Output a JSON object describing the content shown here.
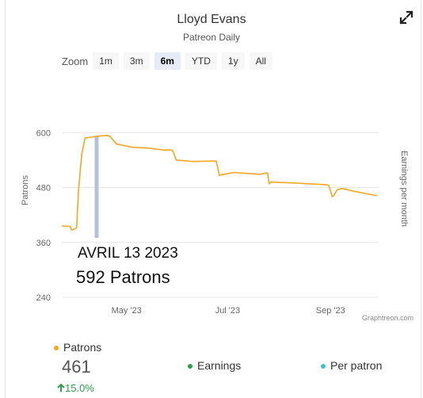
{
  "header": {
    "title": "Lloyd Evans",
    "subtitle": "Patreon Daily"
  },
  "zoom": {
    "label": "Zoom",
    "options": [
      "1m",
      "3m",
      "6m",
      "YTD",
      "1y",
      "All"
    ],
    "selected": "6m"
  },
  "chart_data": {
    "type": "line",
    "ylabel": "Patrons",
    "y2label": "Earnings per month",
    "ylim": [
      240,
      600
    ],
    "yticks": [
      240,
      360,
      480,
      600
    ],
    "ytick_labels": [
      "240",
      "360",
      "480",
      "600"
    ],
    "xlim": [
      "2023-03-23",
      "2023-09-30"
    ],
    "xticks": [
      "2023-05-01",
      "2023-07-01",
      "2023-09-01"
    ],
    "xtick_labels": [
      "May '23",
      "Jul '23",
      "Sep '23"
    ],
    "grid": true,
    "line_color": "#f5a623",
    "crosshair_color": "#b7bfd9",
    "series": [
      {
        "name": "Patrons",
        "x": [
          "2023-03-23",
          "2023-03-28",
          "2023-03-29",
          "2023-03-31",
          "2023-04-01",
          "2023-04-02",
          "2023-04-03",
          "2023-04-04",
          "2023-04-06",
          "2023-04-13",
          "2023-04-19",
          "2023-04-20",
          "2023-04-21",
          "2023-04-25",
          "2023-05-05",
          "2023-05-15",
          "2023-05-23",
          "2023-05-28",
          "2023-05-29",
          "2023-05-31",
          "2023-06-10",
          "2023-06-24",
          "2023-06-25",
          "2023-06-26",
          "2023-06-27",
          "2023-07-05",
          "2023-07-08",
          "2023-07-20",
          "2023-07-25",
          "2023-07-26",
          "2023-07-27",
          "2023-08-10",
          "2023-08-20",
          "2023-08-30",
          "2023-08-31",
          "2023-09-02",
          "2023-09-03",
          "2023-09-05",
          "2023-09-08",
          "2023-09-15",
          "2023-09-29"
        ],
        "y": [
          396,
          395,
          387,
          390,
          392,
          470,
          510,
          552,
          588,
          592,
          594,
          593,
          592,
          575,
          568,
          566,
          562,
          562,
          560,
          540,
          537,
          538,
          524,
          506,
          508,
          513,
          512,
          509,
          512,
          488,
          492,
          490,
          488,
          486,
          484,
          460,
          463,
          475,
          478,
          472,
          462
        ]
      }
    ],
    "annotations": [
      {
        "date": "2023-04-13",
        "label_date": "AVRIL 13 2023",
        "label_value": "592 Patrons",
        "value": 592
      }
    ]
  },
  "legend": {
    "patrons_label": "Patrons",
    "patrons_value": "461",
    "patrons_change": "15.0%",
    "earnings_label": "Earnings",
    "per_patron_label": "Per patron",
    "colors": {
      "patrons": "#f5a623",
      "earnings": "#2e9e4a",
      "per_patron": "#3ec1d3"
    }
  },
  "credit": "Graphtreon.com"
}
